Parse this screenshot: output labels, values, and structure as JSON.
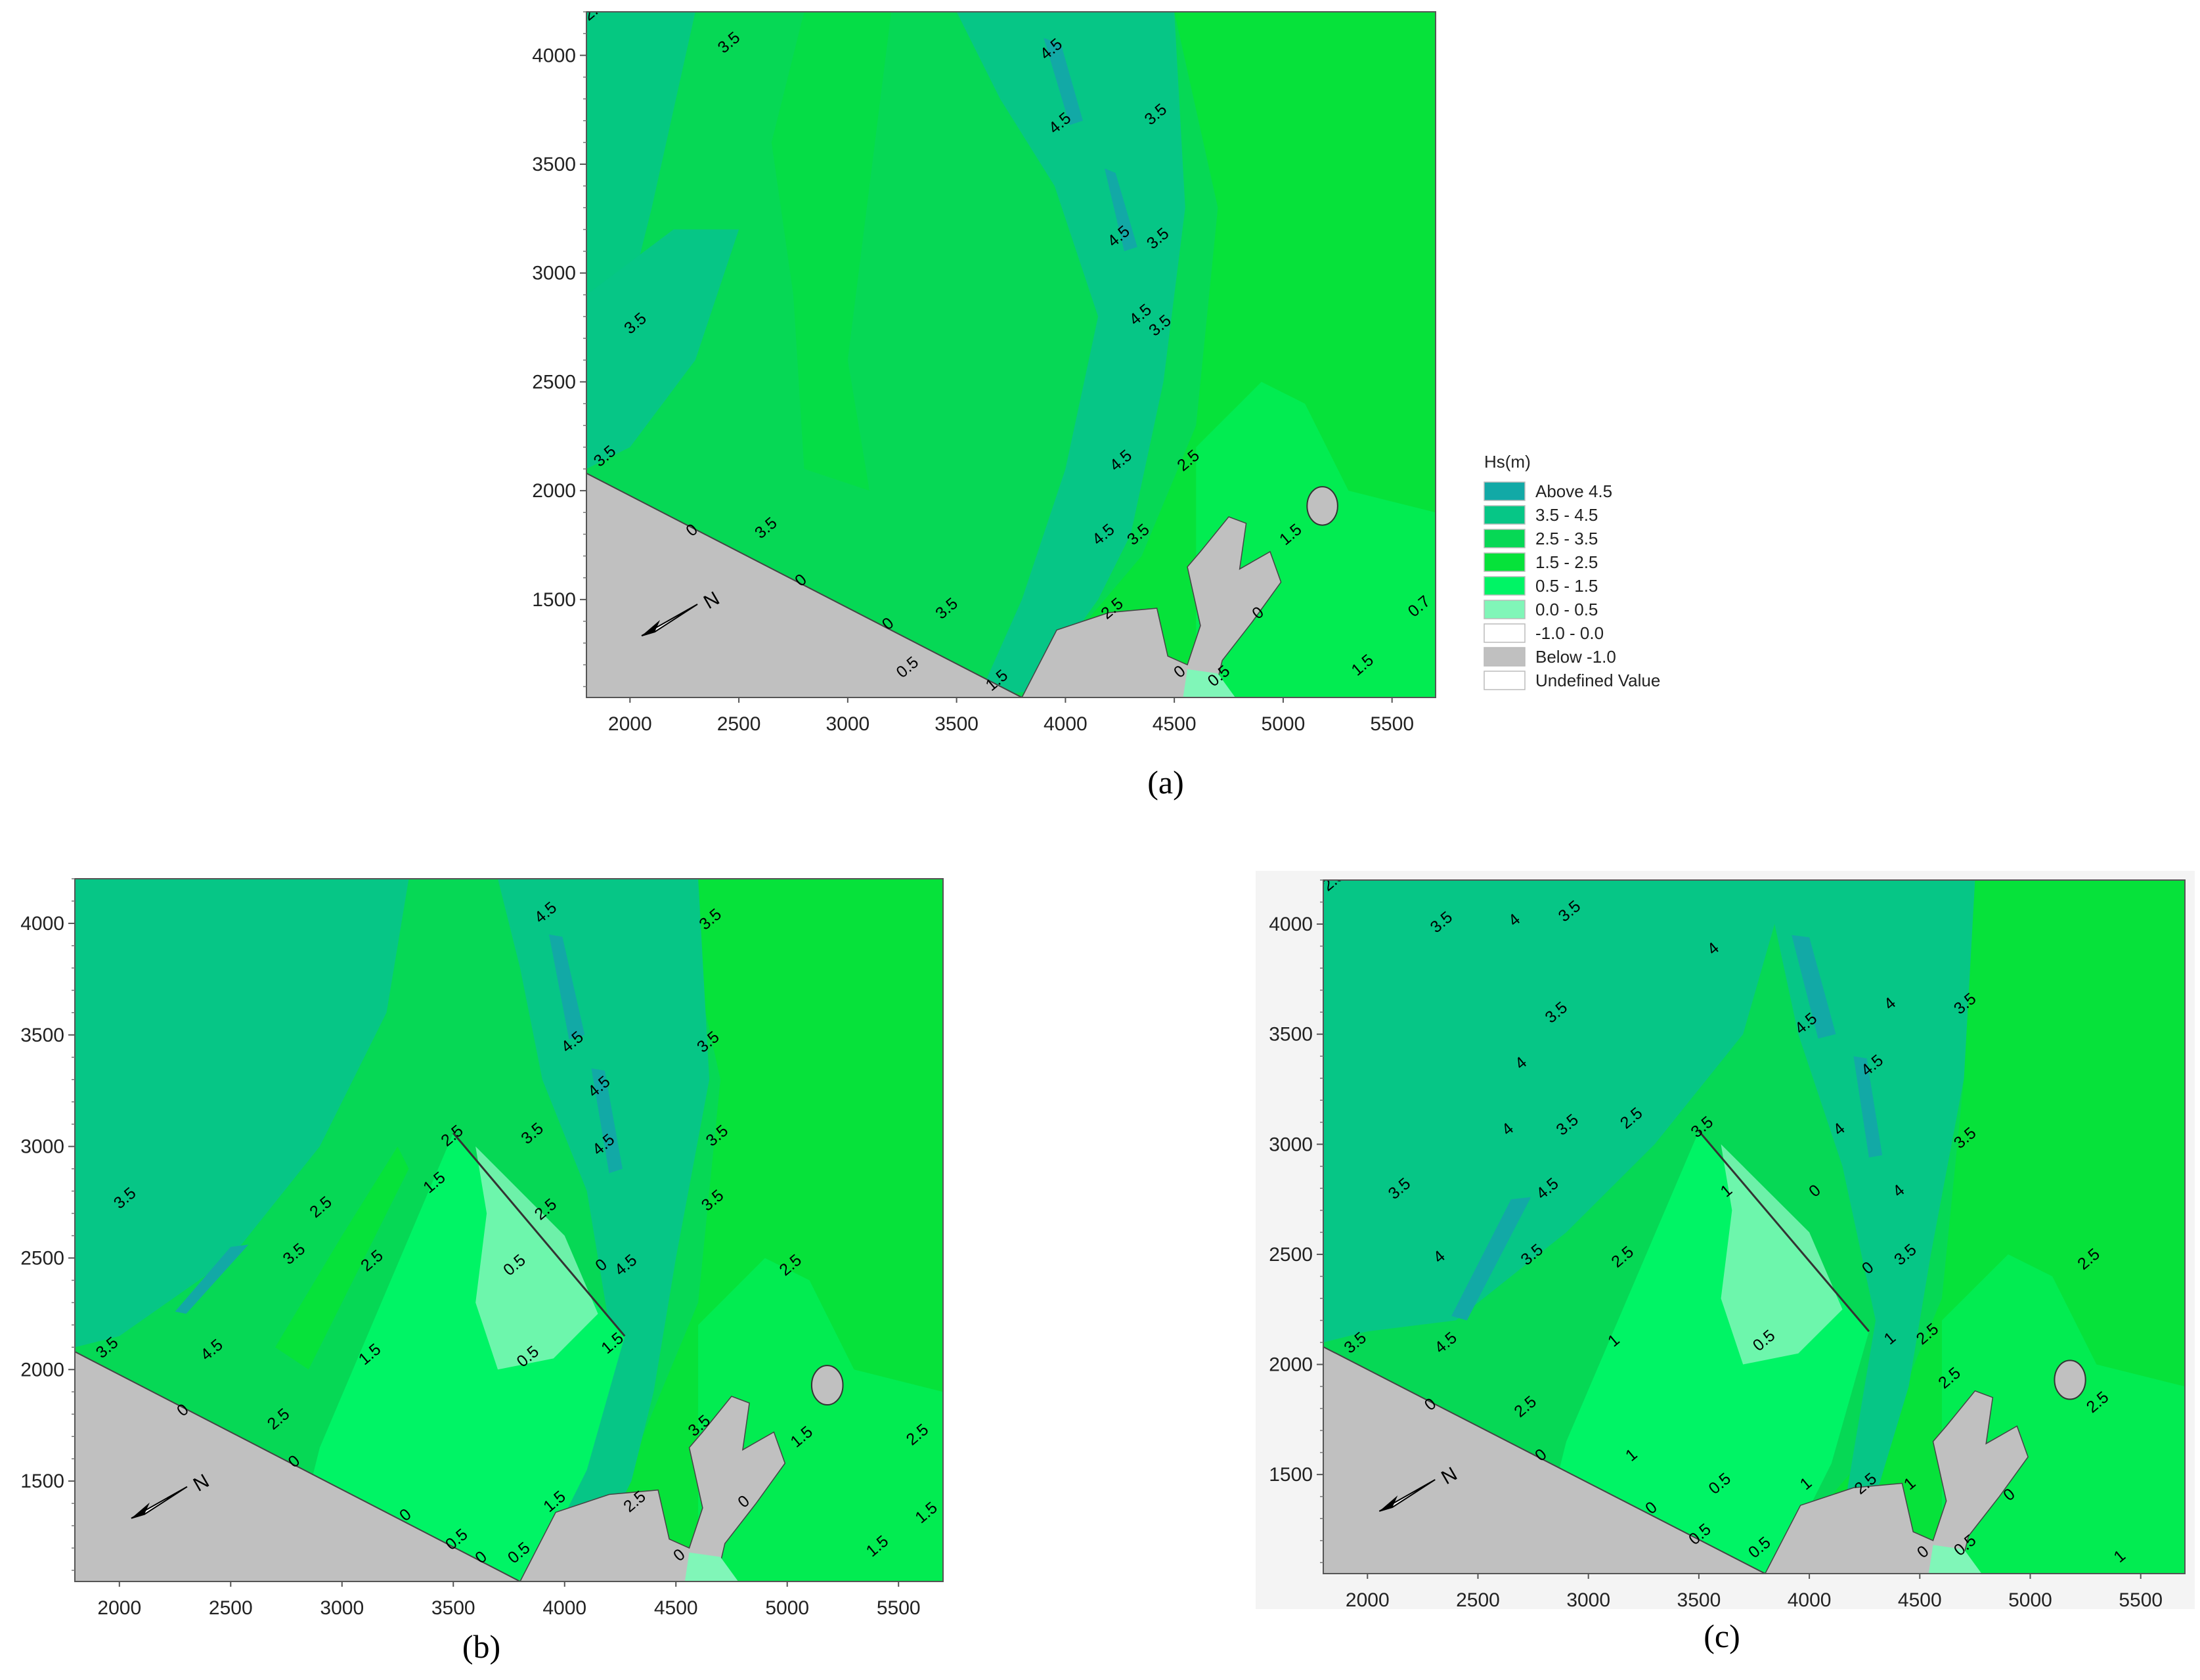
{
  "chart_data": [
    {
      "type": "heatmap",
      "panel": "a",
      "caption": "(a)",
      "xlim": [
        1800,
        5700
      ],
      "ylim": [
        1050,
        4200
      ],
      "xticks": [
        "2000",
        "2500",
        "3000",
        "3500",
        "4000",
        "4500",
        "5000",
        "5500"
      ],
      "yticks": [
        "1500",
        "2000",
        "2500",
        "3000",
        "3500",
        "4000"
      ],
      "north_arrow_label": "N",
      "contour_labels": [
        {
          "text": "3.5",
          "x": 2470,
          "y": 4040
        },
        {
          "text": "2.5",
          "x": 1850,
          "y": 4190
        },
        {
          "text": "4.5",
          "x": 3950,
          "y": 4010
        },
        {
          "text": "4.5",
          "x": 3990,
          "y": 3670
        },
        {
          "text": "3.5",
          "x": 4430,
          "y": 3710
        },
        {
          "text": "4.5",
          "x": 4260,
          "y": 3150
        },
        {
          "text": "3.5",
          "x": 4440,
          "y": 3140
        },
        {
          "text": "4.5",
          "x": 4360,
          "y": 2790
        },
        {
          "text": "3.5",
          "x": 4450,
          "y": 2740
        },
        {
          "text": "3.5",
          "x": 2040,
          "y": 2750
        },
        {
          "text": "4.5",
          "x": 4270,
          "y": 2120
        },
        {
          "text": "2.5",
          "x": 4580,
          "y": 2120
        },
        {
          "text": "3.5",
          "x": 1900,
          "y": 2140
        },
        {
          "text": "0",
          "x": 2300,
          "y": 1800
        },
        {
          "text": "3.5",
          "x": 2640,
          "y": 1810
        },
        {
          "text": "0",
          "x": 2800,
          "y": 1570
        },
        {
          "text": "4.5",
          "x": 4190,
          "y": 1780
        },
        {
          "text": "3.5",
          "x": 4350,
          "y": 1780
        },
        {
          "text": "1.5",
          "x": 5050,
          "y": 1780
        },
        {
          "text": "3.5",
          "x": 3470,
          "y": 1440
        },
        {
          "text": "0",
          "x": 3200,
          "y": 1370
        },
        {
          "text": "2.5",
          "x": 4230,
          "y": 1440
        },
        {
          "text": "0",
          "x": 4900,
          "y": 1420
        },
        {
          "text": "0.5",
          "x": 3290,
          "y": 1170
        },
        {
          "text": "1.5",
          "x": 3700,
          "y": 1110
        },
        {
          "text": "0",
          "x": 4540,
          "y": 1150
        },
        {
          "text": "0.5",
          "x": 4720,
          "y": 1130
        },
        {
          "text": "1.5",
          "x": 5380,
          "y": 1180
        },
        {
          "text": "0.7",
          "x": 5640,
          "y": 1450
        }
      ]
    },
    {
      "type": "heatmap",
      "panel": "b",
      "caption": "(b)",
      "xlim": [
        1800,
        5700
      ],
      "ylim": [
        1050,
        4200
      ],
      "xticks": [
        "2000",
        "2500",
        "3000",
        "3500",
        "4000",
        "4500",
        "5000",
        "5500"
      ],
      "yticks": [
        "1500",
        "2000",
        "2500",
        "3000",
        "3500",
        "4000"
      ],
      "north_arrow_label": "N",
      "contour_labels": [
        {
          "text": "4.5",
          "x": 3930,
          "y": 4030
        },
        {
          "text": "3.5",
          "x": 4670,
          "y": 4000
        },
        {
          "text": "4.5",
          "x": 4050,
          "y": 3450
        },
        {
          "text": "3.5",
          "x": 4660,
          "y": 3450
        },
        {
          "text": "4.5",
          "x": 4170,
          "y": 3250
        },
        {
          "text": "3.5",
          "x": 4700,
          "y": 3030
        },
        {
          "text": "4.5",
          "x": 4190,
          "y": 2990
        },
        {
          "text": "2.5",
          "x": 3510,
          "y": 3030
        },
        {
          "text": "3.5",
          "x": 3870,
          "y": 3040
        },
        {
          "text": "2.5",
          "x": 3930,
          "y": 2700
        },
        {
          "text": "1.5",
          "x": 3430,
          "y": 2820
        },
        {
          "text": "3.5",
          "x": 4680,
          "y": 2740
        },
        {
          "text": "3.5",
          "x": 2040,
          "y": 2750
        },
        {
          "text": "2.5",
          "x": 2920,
          "y": 2710
        },
        {
          "text": "3.5",
          "x": 2800,
          "y": 2500
        },
        {
          "text": "2.5",
          "x": 3150,
          "y": 2470
        },
        {
          "text": "0.5",
          "x": 3790,
          "y": 2450
        },
        {
          "text": "0",
          "x": 4180,
          "y": 2450
        },
        {
          "text": "4.5",
          "x": 4290,
          "y": 2450
        },
        {
          "text": "2.5",
          "x": 5030,
          "y": 2450
        },
        {
          "text": "3.5",
          "x": 1960,
          "y": 2080
        },
        {
          "text": "4.5",
          "x": 2430,
          "y": 2070
        },
        {
          "text": "1.5",
          "x": 3140,
          "y": 2050
        },
        {
          "text": "0.5",
          "x": 3850,
          "y": 2040
        },
        {
          "text": "1.5",
          "x": 4230,
          "y": 2100
        },
        {
          "text": "0",
          "x": 2300,
          "y": 1800
        },
        {
          "text": "2.5",
          "x": 2730,
          "y": 1760
        },
        {
          "text": "3.5",
          "x": 4620,
          "y": 1730
        },
        {
          "text": "1.5",
          "x": 5080,
          "y": 1680
        },
        {
          "text": "2.5",
          "x": 5600,
          "y": 1690
        },
        {
          "text": "0",
          "x": 2800,
          "y": 1570
        },
        {
          "text": "1.5",
          "x": 3970,
          "y": 1390
        },
        {
          "text": "2.5",
          "x": 4330,
          "y": 1390
        },
        {
          "text": "0",
          "x": 4820,
          "y": 1390
        },
        {
          "text": "0",
          "x": 3300,
          "y": 1330
        },
        {
          "text": "0.5",
          "x": 3530,
          "y": 1220
        },
        {
          "text": "0",
          "x": 3640,
          "y": 1140
        },
        {
          "text": "0.5",
          "x": 3810,
          "y": 1160
        },
        {
          "text": "0",
          "x": 4530,
          "y": 1150
        },
        {
          "text": "1.5",
          "x": 5420,
          "y": 1190
        },
        {
          "text": "1.5",
          "x": 5640,
          "y": 1340
        }
      ]
    },
    {
      "type": "heatmap",
      "panel": "c",
      "caption": "(c)",
      "xlim": [
        1800,
        5700
      ],
      "ylim": [
        1050,
        4200
      ],
      "xticks": [
        "2000",
        "2500",
        "3000",
        "3500",
        "4000",
        "4500",
        "5000",
        "5500"
      ],
      "yticks": [
        "1500",
        "2000",
        "2500",
        "3000",
        "3500",
        "4000"
      ],
      "north_arrow_label": "N",
      "contour_labels": [
        {
          "text": "2.5",
          "x": 1860,
          "y": 4180
        },
        {
          "text": "3.5",
          "x": 2350,
          "y": 3990
        },
        {
          "text": "4",
          "x": 2680,
          "y": 4000
        },
        {
          "text": "3.5",
          "x": 2930,
          "y": 4040
        },
        {
          "text": "4",
          "x": 3580,
          "y": 3870
        },
        {
          "text": "3.5",
          "x": 2870,
          "y": 3580
        },
        {
          "text": "4.5",
          "x": 4000,
          "y": 3530
        },
        {
          "text": "4",
          "x": 4380,
          "y": 3620
        },
        {
          "text": "3.5",
          "x": 4720,
          "y": 3620
        },
        {
          "text": "4",
          "x": 2710,
          "y": 3350
        },
        {
          "text": "4.5",
          "x": 4300,
          "y": 3340
        },
        {
          "text": "3.5",
          "x": 2920,
          "y": 3070
        },
        {
          "text": "4",
          "x": 2650,
          "y": 3050
        },
        {
          "text": "2.5",
          "x": 3210,
          "y": 3100
        },
        {
          "text": "3.5",
          "x": 3530,
          "y": 3060
        },
        {
          "text": "4",
          "x": 4150,
          "y": 3050
        },
        {
          "text": "3.5",
          "x": 4720,
          "y": 3010
        },
        {
          "text": "3.5",
          "x": 2160,
          "y": 2780
        },
        {
          "text": "4.5",
          "x": 2830,
          "y": 2780
        },
        {
          "text": "1",
          "x": 3640,
          "y": 2770
        },
        {
          "text": "0",
          "x": 4040,
          "y": 2770
        },
        {
          "text": "4",
          "x": 4420,
          "y": 2770
        },
        {
          "text": "4",
          "x": 2340,
          "y": 2470
        },
        {
          "text": "3.5",
          "x": 2760,
          "y": 2480
        },
        {
          "text": "2.5",
          "x": 3170,
          "y": 2470
        },
        {
          "text": "0",
          "x": 4280,
          "y": 2420
        },
        {
          "text": "3.5",
          "x": 4450,
          "y": 2480
        },
        {
          "text": "2.5",
          "x": 5280,
          "y": 2460
        },
        {
          "text": "3.5",
          "x": 1960,
          "y": 2080
        },
        {
          "text": "4.5",
          "x": 2370,
          "y": 2080
        },
        {
          "text": "1",
          "x": 3130,
          "y": 2090
        },
        {
          "text": "0.5",
          "x": 3810,
          "y": 2090
        },
        {
          "text": "1",
          "x": 4380,
          "y": 2100
        },
        {
          "text": "2.5",
          "x": 4550,
          "y": 2120
        },
        {
          "text": "2.5",
          "x": 4650,
          "y": 1920
        },
        {
          "text": "2.5",
          "x": 5320,
          "y": 1810
        },
        {
          "text": "0",
          "x": 2300,
          "y": 1800
        },
        {
          "text": "2.5",
          "x": 2730,
          "y": 1790
        },
        {
          "text": "0",
          "x": 2800,
          "y": 1570
        },
        {
          "text": "1",
          "x": 3210,
          "y": 1570
        },
        {
          "text": "1",
          "x": 4000,
          "y": 1440
        },
        {
          "text": "0.5",
          "x": 3610,
          "y": 1440
        },
        {
          "text": "2.5",
          "x": 4270,
          "y": 1440
        },
        {
          "text": "1",
          "x": 4470,
          "y": 1440
        },
        {
          "text": "0",
          "x": 3300,
          "y": 1330
        },
        {
          "text": "0",
          "x": 4920,
          "y": 1390
        },
        {
          "text": "0.5",
          "x": 3520,
          "y": 1210
        },
        {
          "text": "0.5",
          "x": 3790,
          "y": 1150
        },
        {
          "text": "0",
          "x": 4530,
          "y": 1130
        },
        {
          "text": "0.5",
          "x": 4720,
          "y": 1160
        },
        {
          "text": "1",
          "x": 5420,
          "y": 1110
        }
      ]
    }
  ],
  "legend": {
    "title": "Hs(m)",
    "items": [
      {
        "label": "Above  4.5",
        "color": "#12a9a6"
      },
      {
        "label": "3.5 -  4.5",
        "color": "#06c686"
      },
      {
        "label": "2.5 -  3.5",
        "color": "#06d855"
      },
      {
        "label": "1.5 -  2.5",
        "color": "#06e23a"
      },
      {
        "label": "0.5 -  1.5",
        "color": "#00f465"
      },
      {
        "label": "0.0 -  0.5",
        "color": "#80f6b8"
      },
      {
        "label": "-1.0 -  0.0",
        "color": "#ffffff"
      },
      {
        "label": "Below -1.0",
        "color": "#c0c0c0"
      },
      {
        "label": "Undefined Value",
        "color": "#ffffff"
      }
    ]
  }
}
